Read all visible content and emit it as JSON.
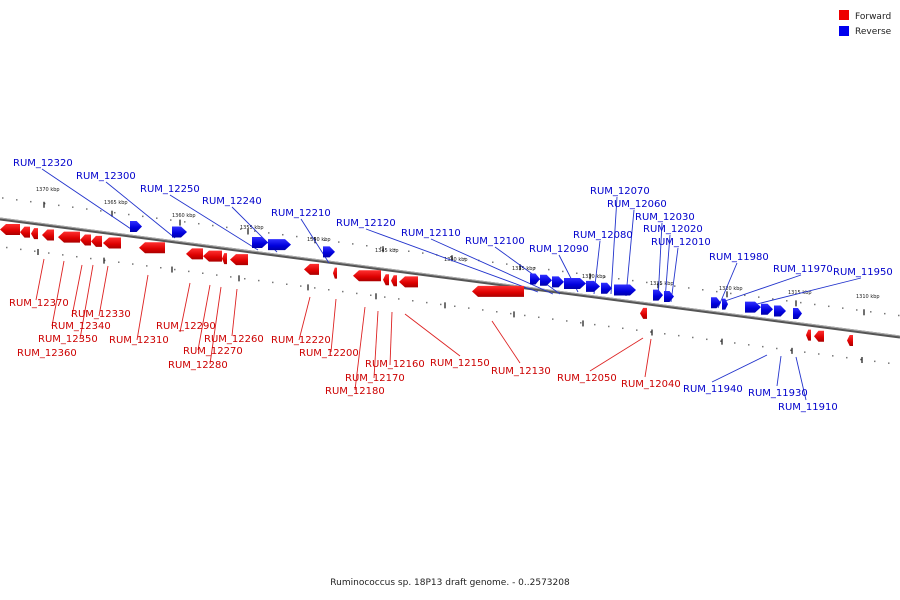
{
  "legend": {
    "forward": {
      "label": "Forward",
      "color": "#ee0000"
    },
    "reverse": {
      "label": "Reverse",
      "color": "#0000ee"
    }
  },
  "footer": {
    "caption": "Ruminococcus sp. 18P13 draft genome. - 0..2573208"
  },
  "kbp_labels": [
    "1370 kbp",
    "1365 kbp",
    "1360 kbp",
    "1355 kbp",
    "1350 kbp",
    "1345 kbp",
    "1340 kbp",
    "1335 kbp",
    "1330 kbp",
    "1325 kbp",
    "1320 kbp",
    "1315 kbp",
    "1310 kbp"
  ],
  "reverse_genes": [
    "RUM_12320",
    "RUM_12300",
    "RUM_12250",
    "RUM_12240",
    "RUM_12210",
    "RUM_12120",
    "RUM_12110",
    "RUM_12100",
    "RUM_12090",
    "RUM_12080",
    "RUM_12070",
    "RUM_12060",
    "RUM_12030",
    "RUM_12020",
    "RUM_12010",
    "RUM_11980",
    "RUM_11970",
    "RUM_11950",
    "RUM_11940",
    "RUM_11930",
    "RUM_11910"
  ],
  "forward_genes": [
    "RUM_12370",
    "RUM_12330",
    "RUM_12340",
    "RUM_12350",
    "RUM_12360",
    "RUM_12310",
    "RUM_12290",
    "RUM_12260",
    "RUM_12270",
    "RUM_12280",
    "RUM_12220",
    "RUM_12200",
    "RUM_12160",
    "RUM_12170",
    "RUM_12180",
    "RUM_12150",
    "RUM_12130",
    "RUM_12050",
    "RUM_12040"
  ]
}
